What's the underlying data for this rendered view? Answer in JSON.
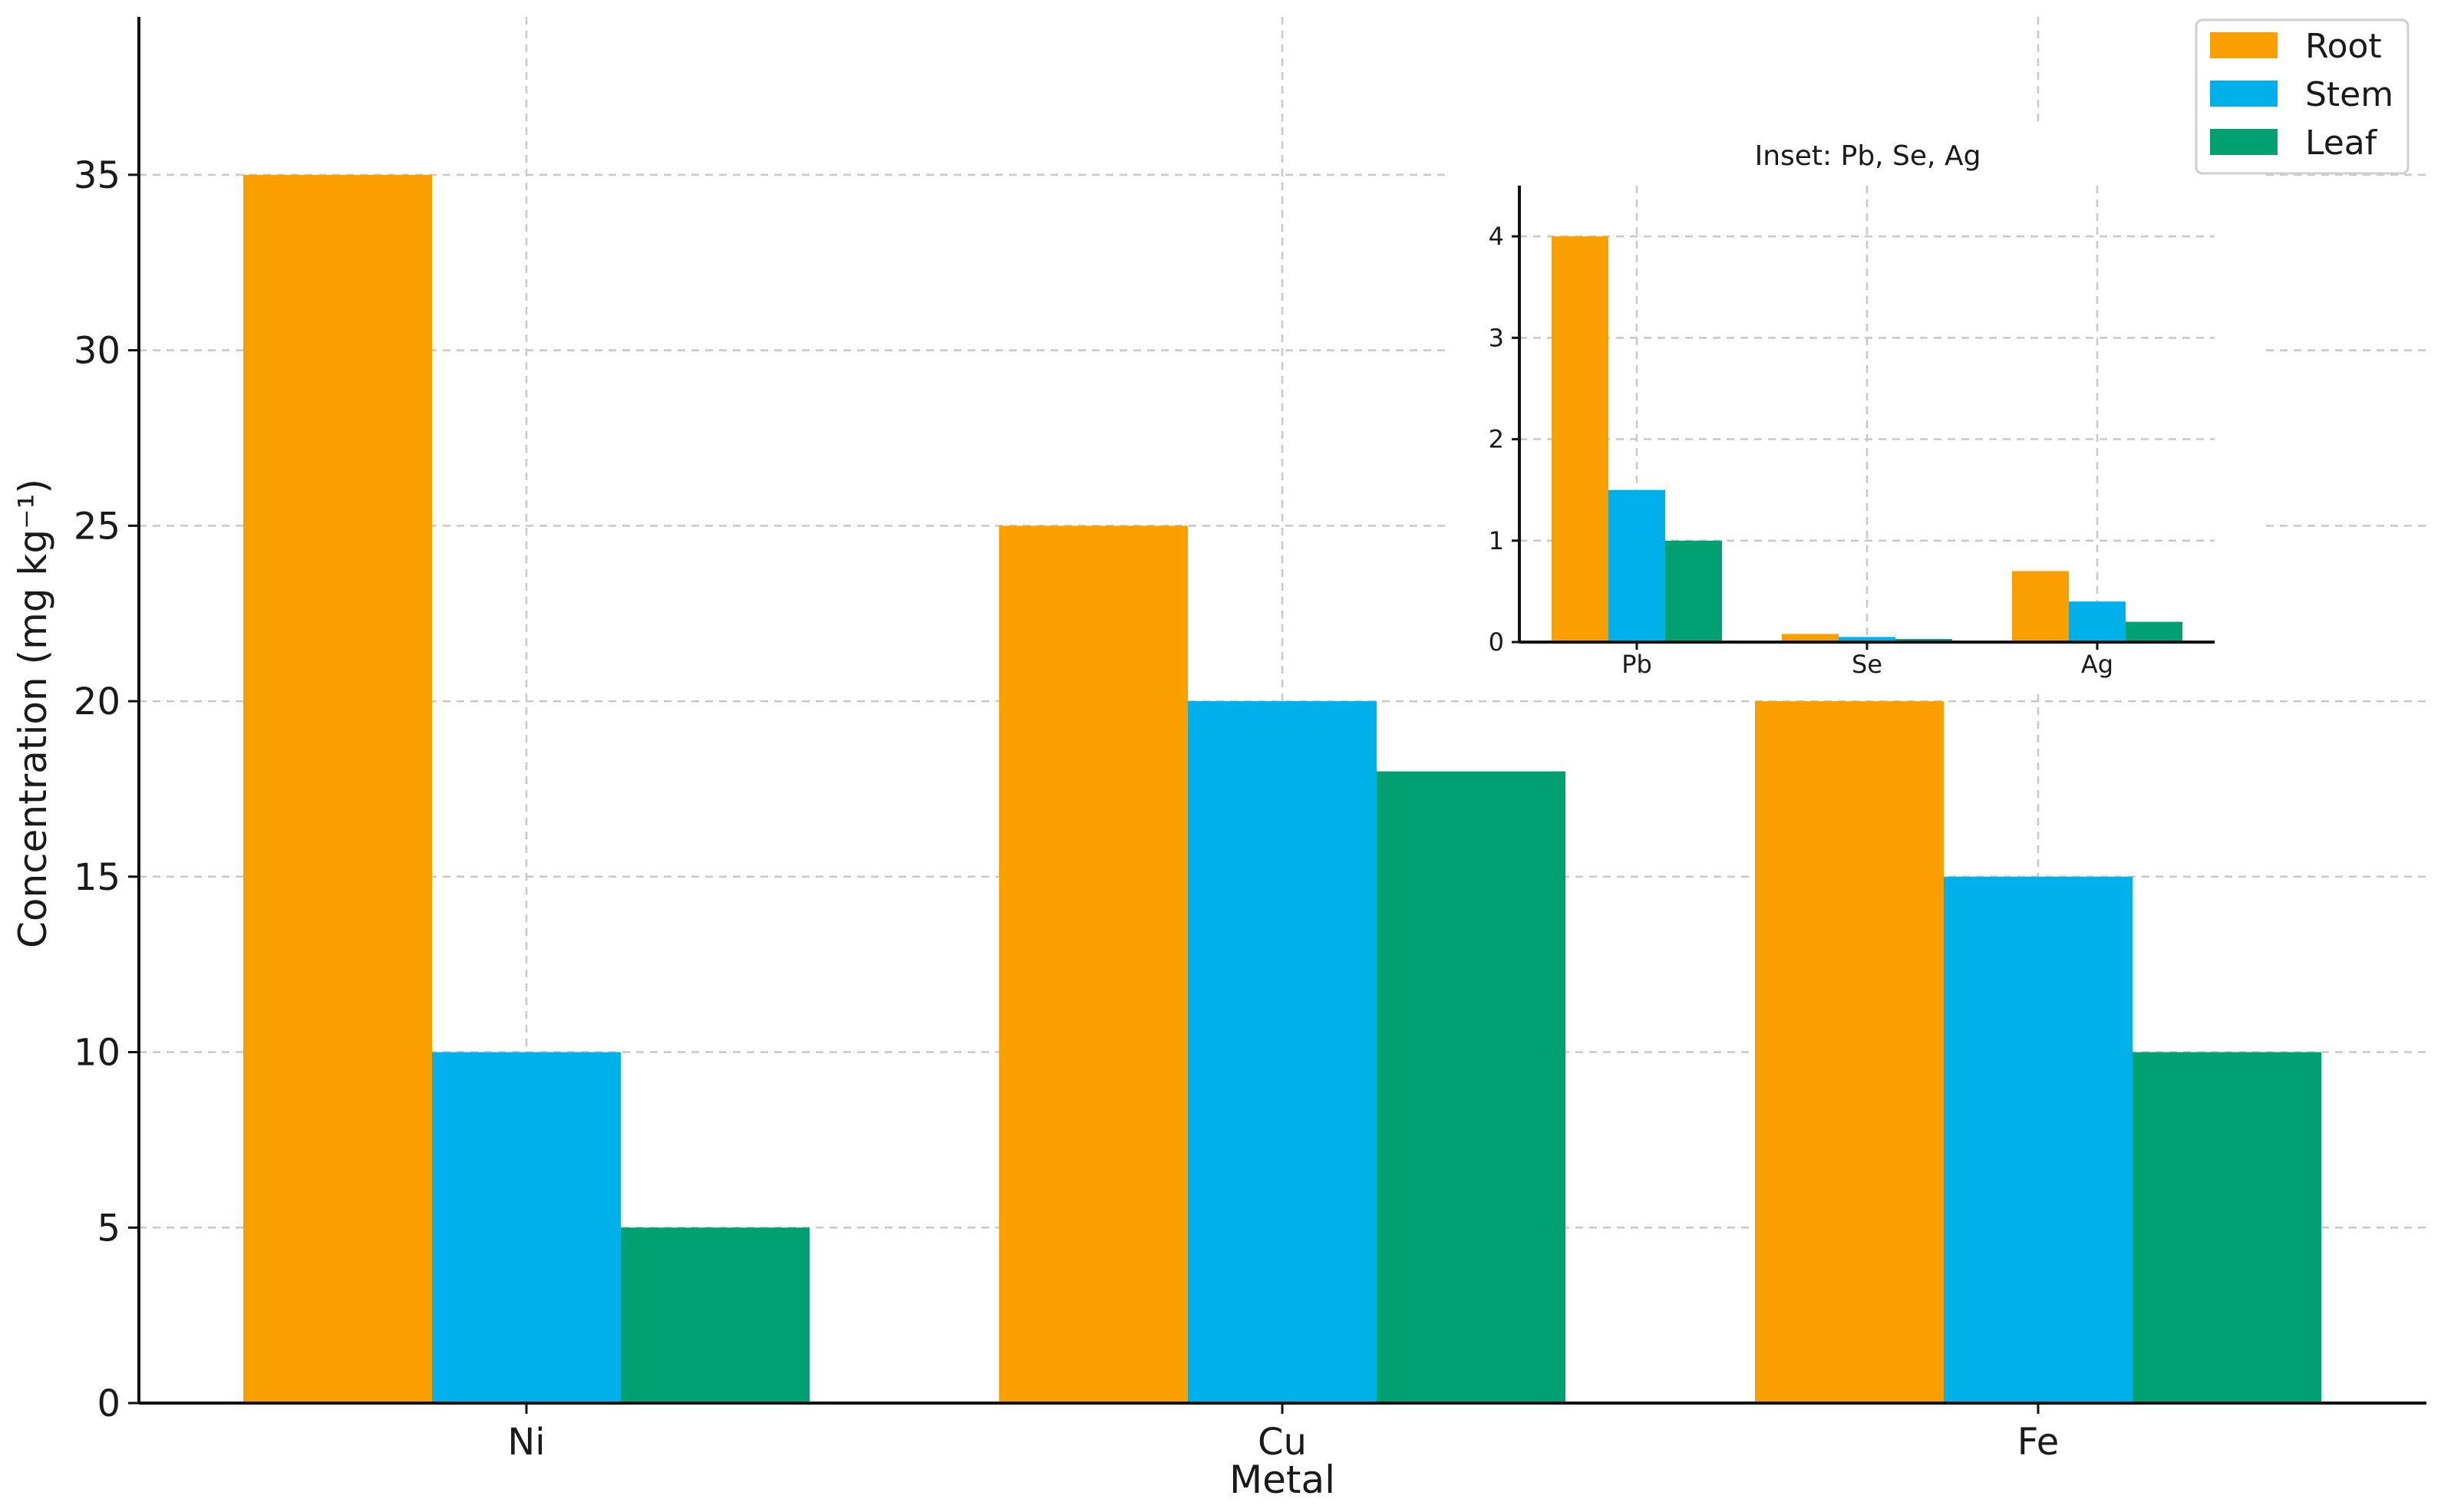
{
  "colors": {
    "Root": "#F9A000",
    "Stem": "#00B0EA",
    "Leaf": "#00A070"
  },
  "chart_data": [
    {
      "type": "bar",
      "title": "",
      "xlabel": "Metal",
      "ylabel": "Concentration (mg kg⁻¹)",
      "categories": [
        "Ni",
        "Cu",
        "Fe"
      ],
      "series": [
        {
          "name": "Root",
          "values": [
            35,
            25,
            20
          ]
        },
        {
          "name": "Stem",
          "values": [
            10,
            20,
            15
          ]
        },
        {
          "name": "Leaf",
          "values": [
            5,
            18,
            10
          ]
        }
      ],
      "ylim": [
        0,
        39.5
      ],
      "yticks": [
        0,
        5,
        10,
        15,
        20,
        25,
        30,
        35
      ],
      "grid": true,
      "legend": {
        "placement": "top-right",
        "entries": [
          "Root",
          "Stem",
          "Leaf"
        ]
      }
    },
    {
      "type": "bar",
      "title": "Inset: Pb, Se, Ag",
      "xlabel": "",
      "ylabel": "",
      "categories": [
        "Pb",
        "Se",
        "Ag"
      ],
      "series": [
        {
          "name": "Root",
          "values": [
            4.0,
            0.08,
            0.7
          ]
        },
        {
          "name": "Stem",
          "values": [
            1.5,
            0.05,
            0.4
          ]
        },
        {
          "name": "Leaf",
          "values": [
            1.0,
            0.03,
            0.2
          ]
        }
      ],
      "ylim": [
        0,
        4.5
      ],
      "yticks": [
        0,
        1,
        2,
        3,
        4
      ],
      "grid": true
    }
  ]
}
